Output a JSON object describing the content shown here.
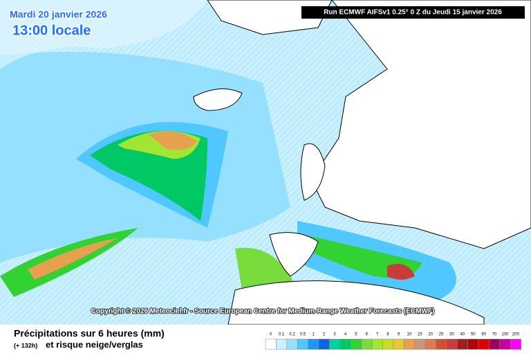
{
  "header": {
    "date": "Mardi 20 janvier 2026",
    "time": "13:00 locale",
    "run": "Run ECMWF AIFSv1 0.25° 0 Z du Jeudi 15 janvier 2026"
  },
  "copyright": "Copyright © 2026 Meteociel.fr - Source European Centre for Medium-Range Weather Forecasts (ECMWF)",
  "footer": {
    "title": "Précipitations sur 6 heures (mm)",
    "lead": "(+ 132h)",
    "subtitle": "et risque neige/verglas"
  },
  "legend": [
    {
      "value": 0,
      "color": "#ffffff"
    },
    {
      "value": 0.1,
      "color": "#c8f0ff"
    },
    {
      "value": 0.2,
      "color": "#96e0ff"
    },
    {
      "value": 0.5,
      "color": "#50c8ff"
    },
    {
      "value": 1,
      "color": "#1e96ff"
    },
    {
      "value": 2,
      "color": "#0a64e6"
    },
    {
      "value": 3,
      "color": "#00d2a0"
    },
    {
      "value": 4,
      "color": "#00c864"
    },
    {
      "value": 5,
      "color": "#32d232"
    },
    {
      "value": 6,
      "color": "#78dc3c"
    },
    {
      "value": 7,
      "color": "#a0e632"
    },
    {
      "value": 8,
      "color": "#c8dc28"
    },
    {
      "value": 9,
      "color": "#e6c832"
    },
    {
      "value": 10,
      "color": "#e6a050"
    },
    {
      "value": 15,
      "color": "#c89678"
    },
    {
      "value": 20,
      "color": "#e07850"
    },
    {
      "value": 25,
      "color": "#d25032"
    },
    {
      "value": 30,
      "color": "#c83c3c"
    },
    {
      "value": 40,
      "color": "#a01e1e"
    },
    {
      "value": 50,
      "color": "#b40000"
    },
    {
      "value": 60,
      "color": "#dc0000"
    },
    {
      "value": 70,
      "color": "#a0005a"
    },
    {
      "value": 100,
      "color": "#c800a0"
    },
    {
      "value": 200,
      "color": "#ff00ff"
    }
  ]
}
